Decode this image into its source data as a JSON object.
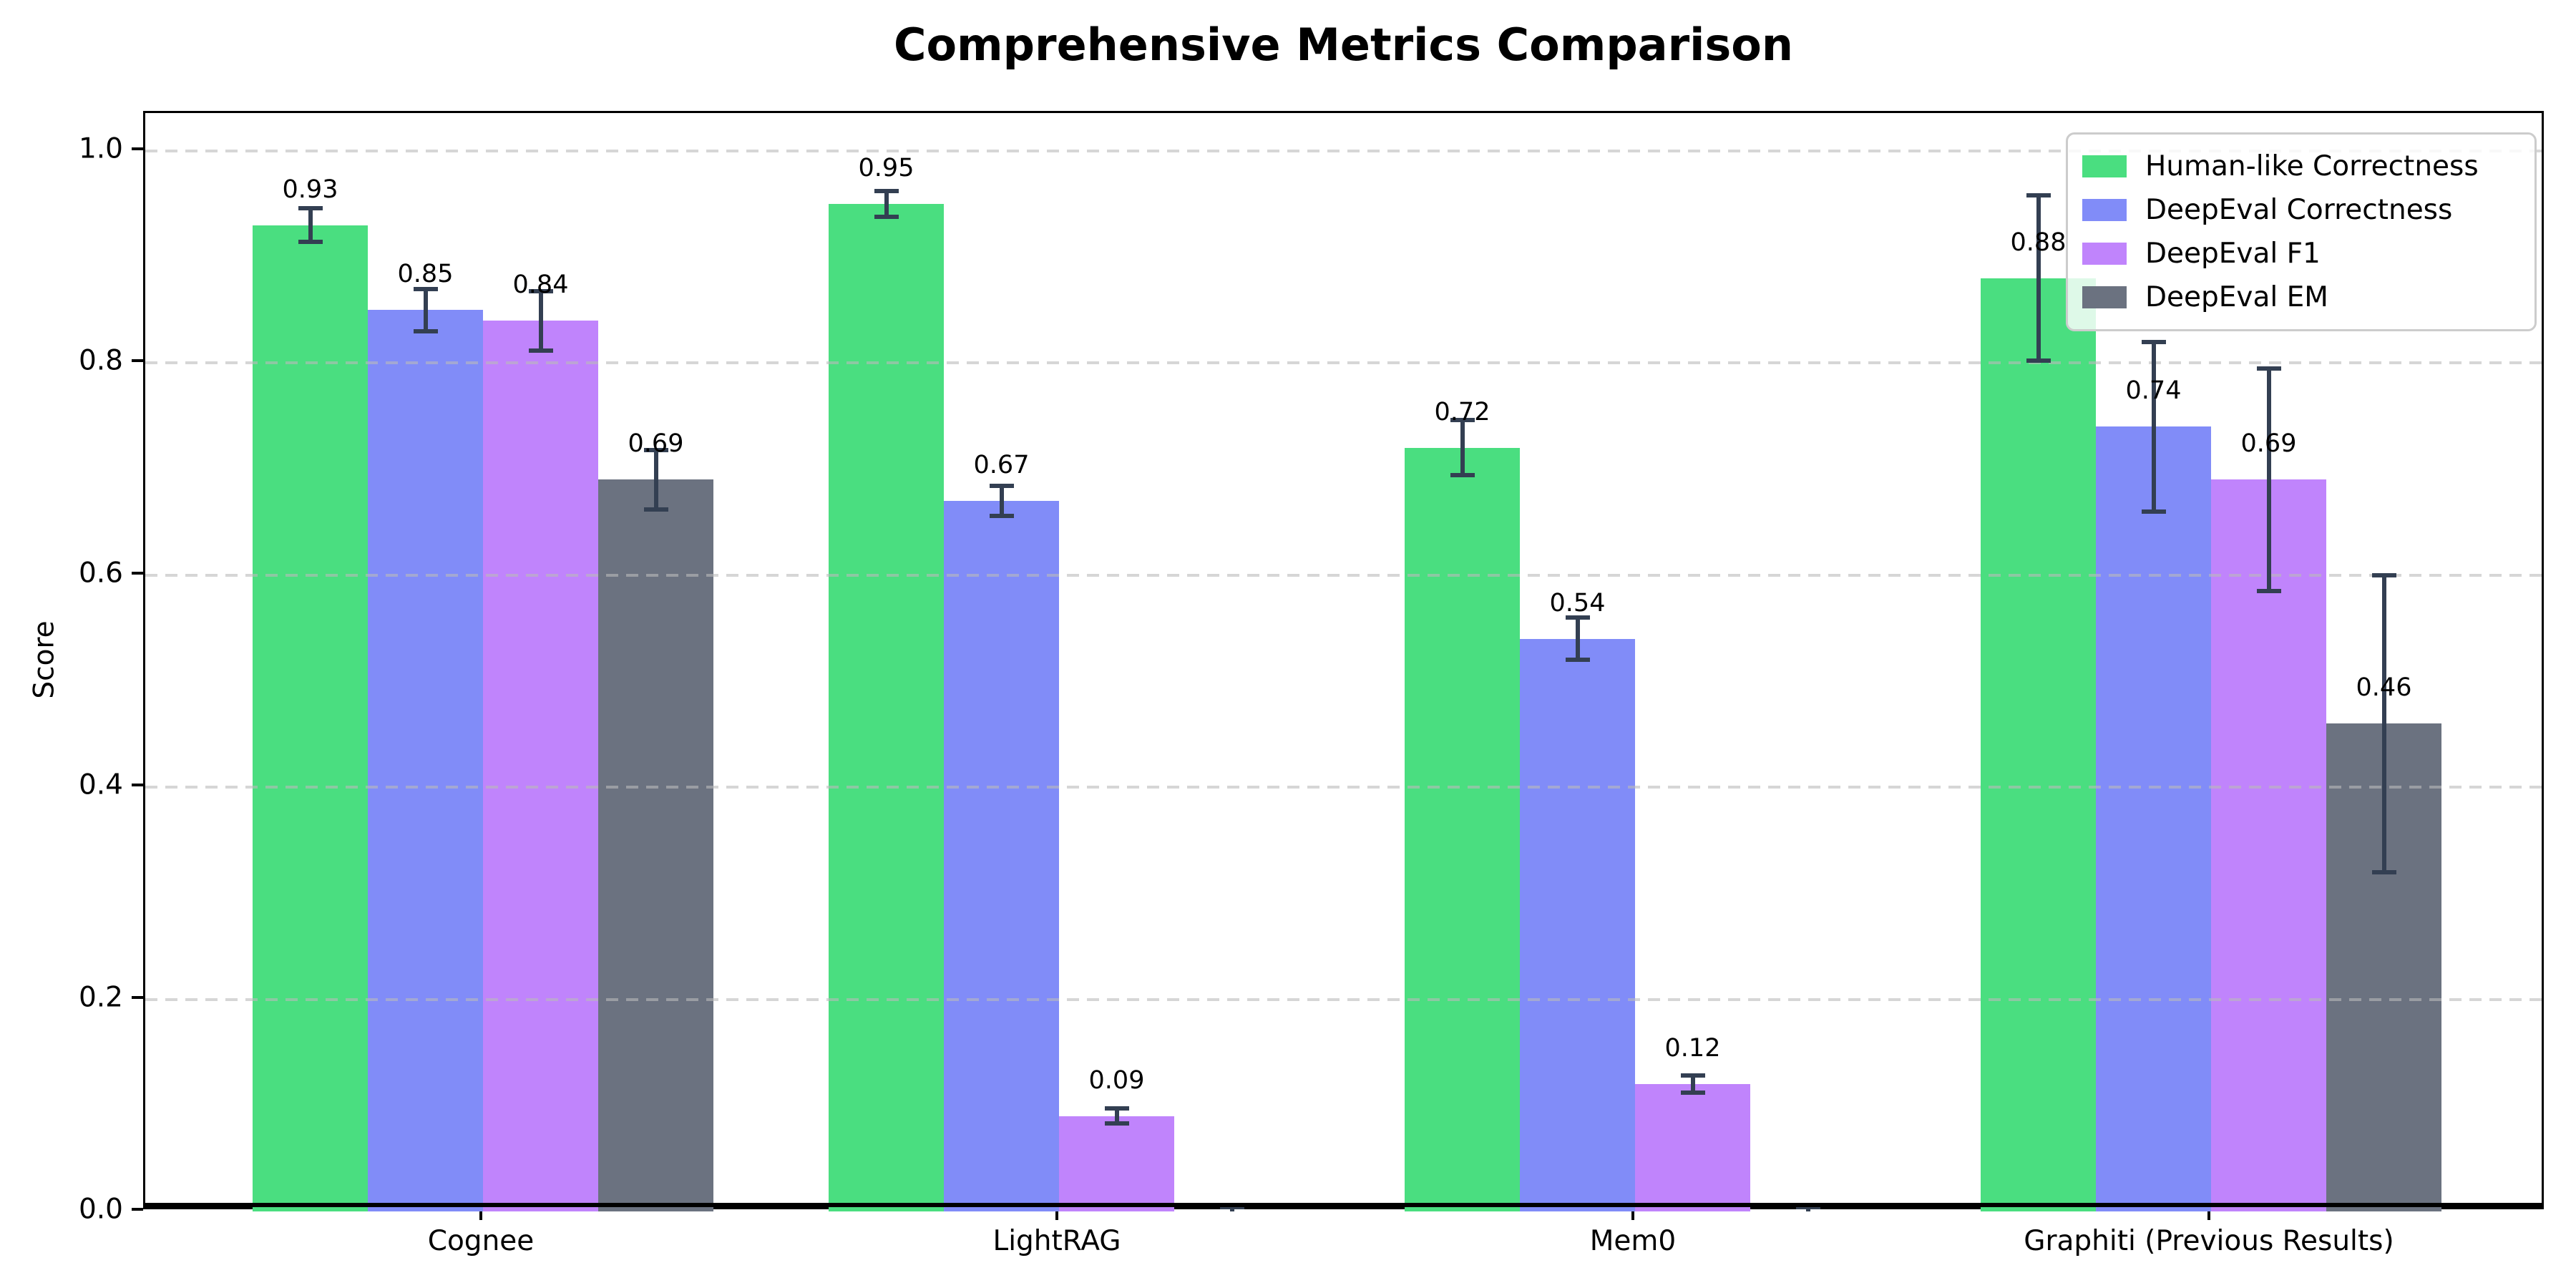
{
  "figure": {
    "title": "Comprehensive Metrics Comparison"
  },
  "chart_data": {
    "type": "bar",
    "title": "Comprehensive Metrics Comparison",
    "xlabel": "",
    "ylabel": "Score",
    "ylim": [
      0,
      1.035
    ],
    "yticks": [
      0.0,
      0.2,
      0.4,
      0.6,
      0.8,
      1.0
    ],
    "ytick_labels": [
      "0.0",
      "0.2",
      "0.4",
      "0.6",
      "0.8",
      "1.0"
    ],
    "grid": "horizontal dashed gridlines drawn above bars",
    "legend_position": "upper right",
    "error_bars": true,
    "categories": [
      "Cognee",
      "LightRAG",
      "Mem0",
      "Graphiti (Previous Results)"
    ],
    "series": [
      {
        "name": "Human-like Correctness",
        "color": "#4ade80",
        "values": [
          0.93,
          0.95,
          0.72,
          0.88
        ],
        "errors": [
          0.016,
          0.012,
          0.026,
          0.078
        ],
        "labels": [
          "0.93",
          "0.95",
          "0.72",
          "0.88"
        ]
      },
      {
        "name": "DeepEval Correctness",
        "color": "#818cf8",
        "values": [
          0.85,
          0.67,
          0.54,
          0.74
        ],
        "errors": [
          0.02,
          0.014,
          0.02,
          0.08
        ],
        "labels": [
          "0.85",
          "0.67",
          "0.54",
          "0.74"
        ]
      },
      {
        "name": "DeepEval F1",
        "color": "#c084fc",
        "values": [
          0.84,
          0.09,
          0.12,
          0.69
        ],
        "errors": [
          0.028,
          0.007,
          0.008,
          0.105
        ],
        "labels": [
          "0.84",
          "0.09",
          "0.12",
          "0.69"
        ]
      },
      {
        "name": "DeepEval EM",
        "color": "#6b7280",
        "values": [
          0.69,
          0.0,
          0.0,
          0.46
        ],
        "errors": [
          0.028,
          0.005,
          0.005,
          0.14
        ],
        "labels": [
          "0.69",
          "",
          "",
          "0.46"
        ]
      }
    ]
  },
  "colors": {
    "error_bar": "#333f52",
    "grid_line": "#bababa",
    "axis": "#000000",
    "background": "#ffffff",
    "legend_border": "#cccccc"
  }
}
